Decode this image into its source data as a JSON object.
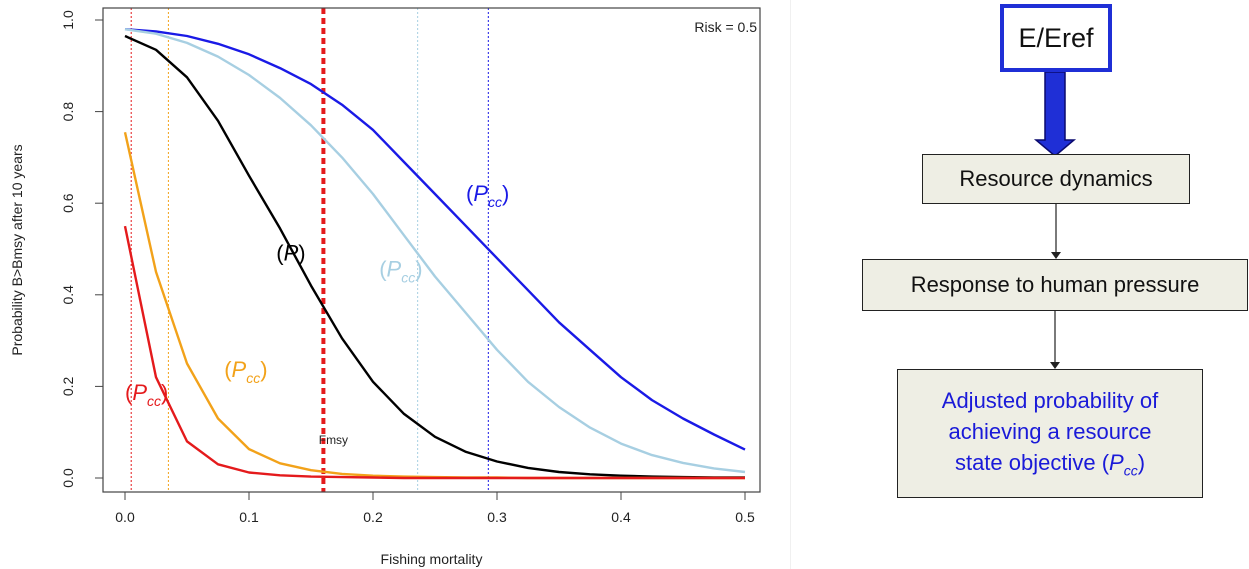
{
  "chart_data": {
    "type": "line",
    "title": "",
    "xlabel": "Fishing mortality",
    "ylabel": "Probability B>Bmsy after 10 years",
    "xlim": [
      0.0,
      0.5
    ],
    "ylim": [
      0.0,
      1.0
    ],
    "xticks": [
      "0.0",
      "0.1",
      "0.2",
      "0.3",
      "0.4",
      "0.5"
    ],
    "yticks": [
      "0.0",
      "0.2",
      "0.4",
      "0.6",
      "0.8",
      "1.0"
    ],
    "x": [
      0.0,
      0.025,
      0.05,
      0.075,
      0.1,
      0.125,
      0.15,
      0.175,
      0.2,
      0.225,
      0.25,
      0.275,
      0.3,
      0.325,
      0.35,
      0.375,
      0.4,
      0.425,
      0.45,
      0.475,
      0.5
    ],
    "risk_label": "Risk = 0.5",
    "series": [
      {
        "color": "#1a1ae6",
        "values": [
          0.98,
          0.975,
          0.965,
          0.948,
          0.925,
          0.895,
          0.86,
          0.815,
          0.76,
          0.69,
          0.62,
          0.55,
          0.48,
          0.41,
          0.34,
          0.28,
          0.22,
          0.17,
          0.13,
          0.095,
          0.062
        ]
      },
      {
        "color": "#a7cfe2",
        "values": [
          0.98,
          0.97,
          0.95,
          0.92,
          0.88,
          0.83,
          0.77,
          0.7,
          0.62,
          0.53,
          0.44,
          0.36,
          0.28,
          0.21,
          0.155,
          0.11,
          0.075,
          0.05,
          0.033,
          0.021,
          0.013
        ]
      },
      {
        "color": "#000000",
        "values": [
          0.965,
          0.935,
          0.875,
          0.78,
          0.66,
          0.545,
          0.42,
          0.305,
          0.21,
          0.14,
          0.09,
          0.057,
          0.036,
          0.022,
          0.013,
          0.008,
          0.005,
          0.003,
          0.002,
          0.001,
          0.001
        ]
      },
      {
        "color": "#f2a21a",
        "values": [
          0.755,
          0.45,
          0.25,
          0.13,
          0.063,
          0.032,
          0.017,
          0.009,
          0.005,
          0.003,
          0.002,
          0.001,
          0.001,
          0.0,
          0.0,
          0.0,
          0.0,
          0.0,
          0.0,
          0.0,
          0.0
        ]
      },
      {
        "color": "#e41a1c",
        "values": [
          0.55,
          0.22,
          0.08,
          0.03,
          0.012,
          0.006,
          0.003,
          0.002,
          0.001,
          0.0,
          0.0,
          0.0,
          0.0,
          0.0,
          0.0,
          0.0,
          0.0,
          0.0,
          0.0,
          0.0,
          0.0
        ]
      }
    ],
    "vlines": [
      {
        "x": 0.16,
        "color": "#e41a1c",
        "style": "thick-dotted",
        "label": "Fmsy"
      },
      {
        "x": 0.293,
        "color": "#1a1ae6",
        "style": "thin-dotted"
      },
      {
        "x": 0.005,
        "color": "#e41a1c",
        "style": "thin-dotted"
      },
      {
        "x": 0.035,
        "color": "#f2a21a",
        "style": "thin-dotted"
      },
      {
        "x": 0.236,
        "color": "#a7cfe2",
        "style": "thin-dotted"
      }
    ],
    "annotations": [
      {
        "text": "(P",
        "sub": "cc",
        "close": ")",
        "color": "#1a1ae6",
        "at_x": 0.275,
        "at_y": 0.605
      },
      {
        "text": "(P",
        "sub": "cc",
        "close": ")",
        "color": "#a7cfe2",
        "at_x": 0.205,
        "at_y": 0.44
      },
      {
        "text": "(P",
        "sub": "",
        "close": ")",
        "color": "#000000",
        "at_x": 0.122,
        "at_y": 0.475
      },
      {
        "text": "(P",
        "sub": "cc",
        "close": ")",
        "color": "#f2a21a",
        "at_x": 0.08,
        "at_y": 0.22
      },
      {
        "text": "(P",
        "sub": "cc",
        "close": ")",
        "color": "#e41a1c",
        "at_x": 0.0,
        "at_y": 0.17
      }
    ]
  },
  "diagram": {
    "eref": "E/Eref",
    "resource_dynamics": "Resource dynamics",
    "human_pressure": "Response to human pressure",
    "adjusted_line1": "Adjusted probability of",
    "adjusted_line2": "achieving a resource",
    "adjusted_line3": "state objective (",
    "adjusted_var": "P",
    "adjusted_sub": "cc",
    "adjusted_close": ")",
    "colors": {
      "eref_border": "#1f2fd6",
      "arrow": "#1f2fd6",
      "box_fill": "#eeeee4",
      "adjusted_text": "#1a1ad8"
    }
  }
}
